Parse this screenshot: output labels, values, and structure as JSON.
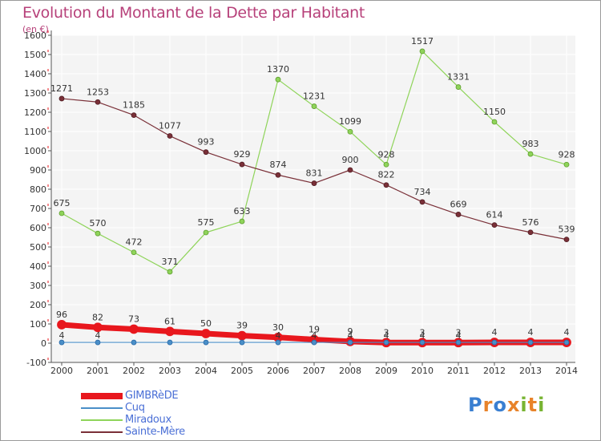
{
  "title": "Evolution du Montant de la Dette par Habitant",
  "subtitle": "(en €)",
  "logo": {
    "text": "Proxiti",
    "colors": [
      "#3a7fd1",
      "#e8832a",
      "#3a7fd1",
      "#e8832a",
      "#78b432",
      "#e8832a",
      "#78b432"
    ]
  },
  "chart_data": {
    "type": "line",
    "title": "Evolution du Montant de la Dette par Habitant",
    "subtitle": "(en €)",
    "x": [
      "2000",
      "2001",
      "2002",
      "2003",
      "2004",
      "2005",
      "2006",
      "2007",
      "2008",
      "2009",
      "2010",
      "2011",
      "2012",
      "2013",
      "2014"
    ],
    "ylim": [
      -100,
      1600
    ],
    "yticks": [
      -100,
      0,
      100,
      200,
      300,
      400,
      500,
      600,
      700,
      800,
      900,
      1000,
      1100,
      1200,
      1300,
      1400,
      1500,
      1600
    ],
    "grid": true,
    "legend_position": "bottom-left",
    "series": [
      {
        "name": "GIMBRèDE",
        "color": "#e8171d",
        "values": [
          96,
          82,
          73,
          61,
          50,
          39,
          30,
          19,
          9,
          3,
          3,
          3,
          4,
          4,
          4
        ],
        "labels": [
          "96",
          "82",
          "73",
          "61",
          "50",
          "39",
          "30",
          "19",
          "9",
          "3",
          "3",
          "3",
          "4",
          "4",
          "4"
        ]
      },
      {
        "name": "Cuq",
        "color": "#4a8fc8",
        "values": [
          4,
          4,
          4,
          4,
          4,
          4,
          4,
          4,
          4,
          4,
          4,
          4,
          4,
          4,
          4
        ],
        "labels": [
          "4",
          "4",
          "",
          "",
          "",
          "",
          "4",
          "4",
          "4",
          "4",
          "4",
          "4",
          "",
          "",
          ""
        ]
      },
      {
        "name": "Miradoux",
        "color": "#8fd45a",
        "values": [
          675,
          570,
          472,
          371,
          575,
          633,
          1370,
          1231,
          1099,
          928,
          1517,
          1331,
          1150,
          983,
          928
        ],
        "labels": [
          "675",
          "570",
          "472",
          "371",
          "575",
          "633",
          "1370",
          "1231",
          "1099",
          "928",
          "1517",
          "1331",
          "1150",
          "983",
          "928"
        ]
      },
      {
        "name": "Sainte-Mère",
        "color": "#7a3038",
        "values": [
          1271,
          1253,
          1185,
          1077,
          993,
          929,
          874,
          831,
          900,
          822,
          734,
          669,
          614,
          576,
          539
        ],
        "labels": [
          "1271",
          "1253",
          "1185",
          "1077",
          "993",
          "929",
          "874",
          "831",
          "900",
          "822",
          "734",
          "669",
          "614",
          "576",
          "539"
        ]
      }
    ]
  }
}
